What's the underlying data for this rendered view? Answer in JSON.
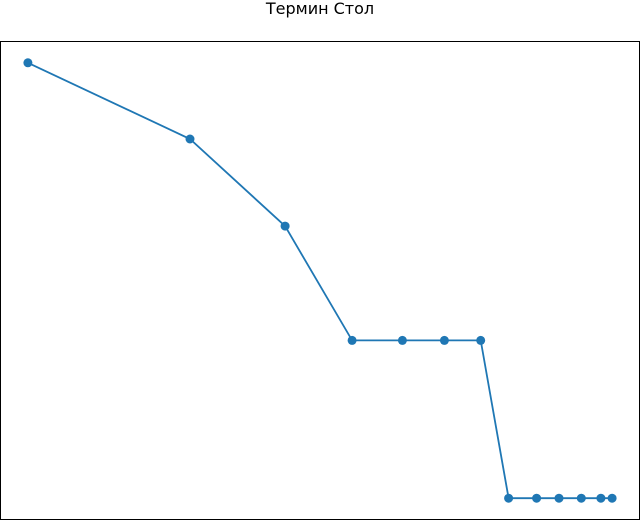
{
  "chart_data": {
    "type": "line",
    "title": "Термин Стол",
    "xlabel": "",
    "ylabel": "",
    "x": [
      0,
      1,
      2,
      3,
      4,
      5,
      6,
      7,
      8,
      9,
      10,
      11,
      12
    ],
    "series": [
      {
        "values": [
          10.0,
          8.6,
          7.0,
          4.9,
          4.9,
          4.9,
          4.9,
          2.0,
          2.0,
          2.0,
          2.0,
          2.0,
          2.0
        ],
        "x": [
          0.1,
          5.9,
          9.3,
          11.7,
          13.5,
          15.0,
          16.3,
          17.3,
          18.3,
          19.1,
          19.9,
          20.6,
          21.0
        ],
        "color": "#1f77b4"
      }
    ],
    "xlim": [
      -0.9,
      22.0
    ],
    "ylim": [
      1.6,
      10.4
    ],
    "grid": false,
    "legend": "none",
    "axes_visible": false
  }
}
